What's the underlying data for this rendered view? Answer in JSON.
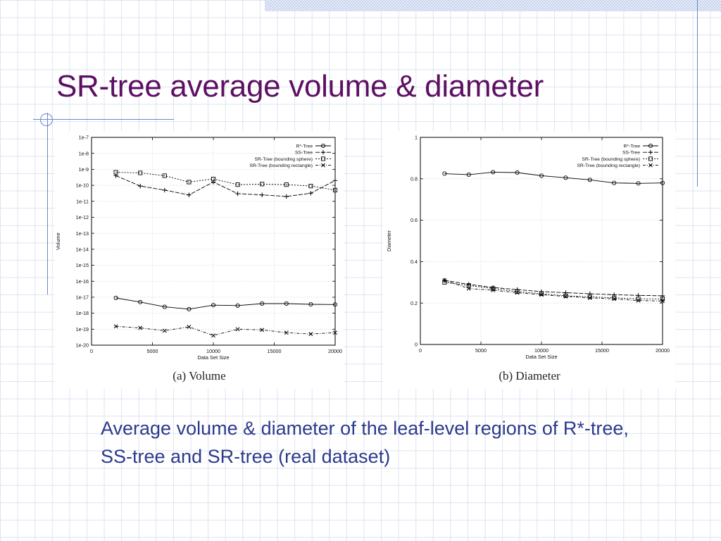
{
  "slide": {
    "title": "SR-tree average volume & diameter",
    "caption": "Average volume & diameter of the leaf-level regions of R*-tree, SS-tree and SR-tree (real dataset)"
  },
  "chart_data": [
    {
      "type": "line",
      "caption": "(a) Volume",
      "xlabel": "Data Set Size",
      "ylabel": "Volume",
      "xlim": [
        0,
        20000
      ],
      "ylim": [
        1e-20,
        1e-07
      ],
      "yscale": "log",
      "xticks": [
        "0",
        "5000",
        "10000",
        "15000",
        "20000"
      ],
      "yticks": [
        "1e-20",
        "1e-19",
        "1e-18",
        "1e-17",
        "1e-16",
        "1e-15",
        "1e-14",
        "1e-13",
        "1e-12",
        "1e-11",
        "1e-10",
        "1e-9",
        "1e-8",
        "1e-7"
      ],
      "grid": true,
      "legend_position": "top-right",
      "x": [
        2000,
        4000,
        6000,
        8000,
        10000,
        12000,
        14000,
        16000,
        18000,
        20000
      ],
      "series": [
        {
          "name": "R*-Tree",
          "marker": "circle",
          "values": [
            9e-18,
            5e-18,
            2.5e-18,
            1.8e-18,
            3.2e-18,
            3e-18,
            4e-18,
            4e-18,
            3.6e-18,
            3.5e-18
          ]
        },
        {
          "name": "SS-Tree",
          "marker": "plus",
          "values": [
            4e-10,
            9e-11,
            5e-11,
            2.5e-11,
            1.6e-10,
            3e-11,
            2.5e-11,
            2e-11,
            3.2e-11,
            2e-10
          ]
        },
        {
          "name": "SR-Tree (bounding sphere)",
          "marker": "square",
          "values": [
            6.5e-10,
            6e-10,
            4e-10,
            1.6e-10,
            2.5e-10,
            1.1e-10,
            1.2e-10,
            1.1e-10,
            9e-11,
            5e-11
          ]
        },
        {
          "name": "SR-Tree (bounding rectangle)",
          "marker": "cross",
          "values": [
            1.5e-19,
            1.2e-19,
            8e-20,
            1.4e-19,
            4e-20,
            1e-19,
            9e-20,
            6e-20,
            5e-20,
            6e-20
          ]
        }
      ]
    },
    {
      "type": "line",
      "caption": "(b) Diameter",
      "xlabel": "Data Set Size",
      "ylabel": "Diameter",
      "xlim": [
        0,
        20000
      ],
      "ylim": [
        0,
        1
      ],
      "yscale": "linear",
      "xticks": [
        "0",
        "5000",
        "10000",
        "15000",
        "20000"
      ],
      "yticks": [
        "0",
        "0.2",
        "0.4",
        "0.6",
        "0.8",
        "1"
      ],
      "grid": true,
      "legend_position": "top-right",
      "x": [
        2000,
        4000,
        6000,
        8000,
        10000,
        12000,
        14000,
        16000,
        18000,
        20000
      ],
      "series": [
        {
          "name": "R*-Tree",
          "marker": "circle",
          "values": [
            0.825,
            0.82,
            0.832,
            0.83,
            0.815,
            0.805,
            0.795,
            0.78,
            0.778,
            0.78
          ]
        },
        {
          "name": "SS-Tree",
          "marker": "plus",
          "values": [
            0.31,
            0.29,
            0.275,
            0.265,
            0.255,
            0.25,
            0.245,
            0.24,
            0.237,
            0.235
          ]
        },
        {
          "name": "SR-Tree (bounding sphere)",
          "marker": "square",
          "values": [
            0.3,
            0.285,
            0.27,
            0.255,
            0.245,
            0.235,
            0.23,
            0.225,
            0.22,
            0.22
          ]
        },
        {
          "name": "SR-Tree (bounding rectangle)",
          "marker": "cross",
          "values": [
            0.31,
            0.27,
            0.262,
            0.25,
            0.24,
            0.232,
            0.225,
            0.22,
            0.212,
            0.21
          ]
        }
      ]
    }
  ]
}
